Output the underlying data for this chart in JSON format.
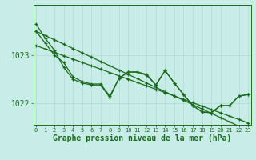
{
  "xlabel_label": "Graphe pression niveau de la mer (hPa)",
  "background_color": "#c8ece8",
  "grid_color": "#b0d8d0",
  "line_color": "#1a6b1a",
  "hours": [
    0,
    1,
    2,
    3,
    4,
    5,
    6,
    7,
    8,
    9,
    10,
    11,
    12,
    13,
    14,
    15,
    16,
    17,
    18,
    19,
    20,
    21,
    22,
    23
  ],
  "line1": [
    1023.65,
    1023.35,
    1023.1,
    1022.75,
    1022.5,
    1022.42,
    1022.38,
    1022.38,
    1022.12,
    1022.52,
    1022.65,
    1022.65,
    1022.58,
    1022.38,
    1022.68,
    1022.42,
    1022.18,
    1021.95,
    1021.82,
    1021.8,
    1021.95,
    1021.95,
    1022.15,
    1022.18
  ],
  "line2": [
    1023.5,
    1023.25,
    1023.0,
    1022.85,
    1022.55,
    1022.45,
    1022.4,
    1022.4,
    1022.15,
    1022.52,
    1022.65,
    1022.65,
    1022.6,
    1022.38,
    1022.68,
    1022.42,
    1022.18,
    1021.95,
    1021.82,
    1021.8,
    1021.95,
    1021.95,
    1022.15,
    1022.18
  ],
  "line3_straight": [
    1023.5,
    1023.41,
    1023.32,
    1023.23,
    1023.14,
    1023.05,
    1022.96,
    1022.87,
    1022.78,
    1022.69,
    1022.6,
    1022.51,
    1022.42,
    1022.33,
    1022.24,
    1022.15,
    1022.06,
    1021.97,
    1021.88,
    1021.79,
    1021.7,
    1021.61,
    1021.52,
    1021.43
  ],
  "line4_straight": [
    1023.2,
    1023.13,
    1023.06,
    1022.99,
    1022.92,
    1022.85,
    1022.78,
    1022.71,
    1022.64,
    1022.57,
    1022.5,
    1022.43,
    1022.36,
    1022.29,
    1022.22,
    1022.15,
    1022.08,
    1022.01,
    1021.94,
    1021.87,
    1021.8,
    1021.73,
    1021.66,
    1021.59
  ],
  "ylim_min": 1021.55,
  "ylim_max": 1024.05,
  "yticks": [
    1022.0,
    1023.0
  ],
  "ytick_labels": [
    "1022",
    "1023"
  ],
  "fontsize_ticks": 7,
  "fontsize_label": 7,
  "marker": "+"
}
